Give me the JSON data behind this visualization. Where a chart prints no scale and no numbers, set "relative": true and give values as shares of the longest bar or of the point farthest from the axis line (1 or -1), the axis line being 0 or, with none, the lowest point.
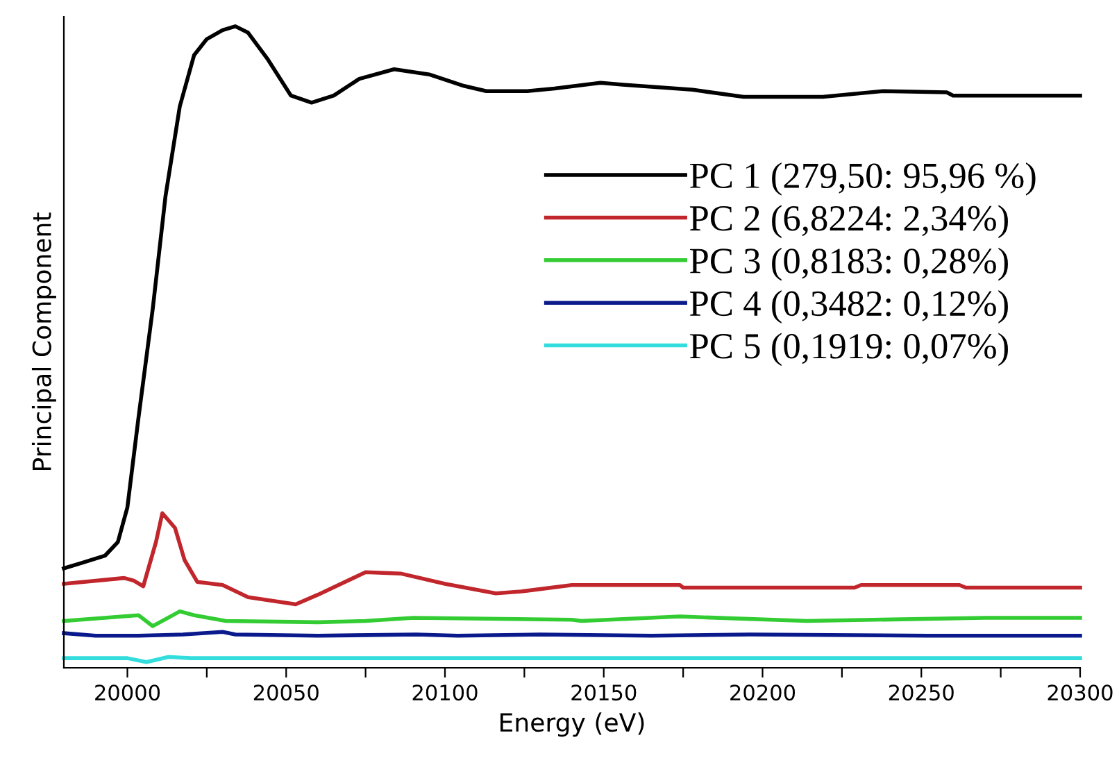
{
  "chart_data": {
    "type": "line",
    "xlabel": "Energy (eV)",
    "ylabel": "Principal Component",
    "relative": true,
    "xlim": [
      19980,
      20300
    ],
    "xticks": [
      20000,
      {
        "value": 20025,
        "label": null
      },
      20050,
      {
        "value": 20075,
        "label": null
      },
      20100,
      {
        "value": 20125,
        "label": null
      },
      20150,
      {
        "value": 20175,
        "label": null
      },
      20200,
      {
        "value": 20225,
        "label": null
      },
      20250,
      {
        "value": 20275,
        "label": null
      },
      20300
    ],
    "grid": false,
    "legend": "right",
    "line_style": "solid",
    "marker": "none",
    "series": [
      {
        "name": "PC 1 (279,50: 95,96 %)",
        "color": "#000000",
        "x": [
          19980,
          19986,
          19993,
          19997,
          20000,
          20003.5,
          20008,
          20012,
          20016.5,
          20021,
          20025,
          20030,
          20034,
          20038,
          20044,
          20051.5,
          20058,
          20065,
          20073,
          20084,
          20095,
          20106,
          20113,
          20126,
          20134.5,
          20149,
          20156,
          20178,
          20194,
          20219,
          20238,
          20258,
          20260,
          20300
        ],
        "values": [
          0.155,
          0.164,
          0.175,
          0.196,
          0.25,
          0.39,
          0.56,
          0.735,
          0.875,
          0.955,
          0.98,
          0.994,
          1.0,
          0.99,
          0.95,
          0.892,
          0.881,
          0.892,
          0.918,
          0.933,
          0.925,
          0.907,
          0.899,
          0.899,
          0.903,
          0.912,
          0.909,
          0.901,
          0.89,
          0.89,
          0.899,
          0.897,
          0.892,
          0.892
        ]
      },
      {
        "name": "PC 2 (6,8224: 2,34%)",
        "color": "#c0262b",
        "x": [
          19980,
          19999,
          20002,
          20005,
          20009,
          20011,
          20015,
          20018,
          20022,
          20030,
          20038,
          20053,
          20060,
          20075,
          20086,
          20100,
          20116,
          20124,
          20140,
          20174,
          20175,
          20229,
          20231,
          20262,
          20264,
          20300
        ],
        "values": [
          0.131,
          0.14,
          0.136,
          0.127,
          0.196,
          0.241,
          0.218,
          0.168,
          0.134,
          0.129,
          0.11,
          0.099,
          0.114,
          0.149,
          0.147,
          0.131,
          0.116,
          0.119,
          0.129,
          0.129,
          0.125,
          0.125,
          0.129,
          0.129,
          0.125,
          0.125
        ]
      },
      {
        "name": "PC 3 (0,8183: 0,28%)",
        "color": "#33cc33",
        "x": [
          19980,
          20003.5,
          20008,
          20016.5,
          20021,
          20031,
          20060,
          20075,
          20090,
          20140,
          20143,
          20174,
          20214,
          20270,
          20300
        ],
        "values": [
          0.073,
          0.082,
          0.065,
          0.088,
          0.082,
          0.073,
          0.071,
          0.073,
          0.078,
          0.075,
          0.073,
          0.08,
          0.073,
          0.078,
          0.078
        ]
      },
      {
        "name": "PC 4 (0,3482: 0,12%)",
        "color": "#0a1a8c",
        "x": [
          19980,
          19990,
          20003.5,
          20017.5,
          20030,
          20034,
          20060,
          20091,
          20104,
          20130,
          20165,
          20196,
          20252,
          20300
        ],
        "values": [
          0.054,
          0.05,
          0.05,
          0.052,
          0.056,
          0.052,
          0.05,
          0.052,
          0.05,
          0.052,
          0.05,
          0.052,
          0.05,
          0.05
        ]
      },
      {
        "name": "PC 5 (0,1919: 0,07%)",
        "color": "#33dddd",
        "x": [
          19980,
          20000,
          20006,
          20013,
          20020,
          20300
        ],
        "values": [
          0.015,
          0.015,
          0.009,
          0.017,
          0.015,
          0.015
        ]
      }
    ]
  }
}
